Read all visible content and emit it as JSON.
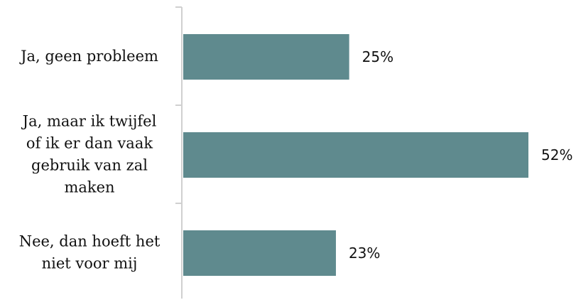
{
  "chart_data": {
    "type": "bar",
    "orientation": "horizontal",
    "categories": [
      [
        "Ja, geen probleem"
      ],
      [
        "Ja, maar ik twijfel",
        "of ik er dan vaak",
        "gebruik van zal",
        "maken"
      ],
      [
        "Nee, dan hoeft het",
        "niet voor mij"
      ]
    ],
    "values": [
      25,
      52,
      23
    ],
    "value_labels": [
      "25%",
      "52%",
      "23%"
    ],
    "xlim": [
      0,
      56
    ],
    "grid": false,
    "colors": {
      "bar": "#5f8a8e",
      "axis": "#d0d0d0",
      "text": "#111111"
    }
  }
}
